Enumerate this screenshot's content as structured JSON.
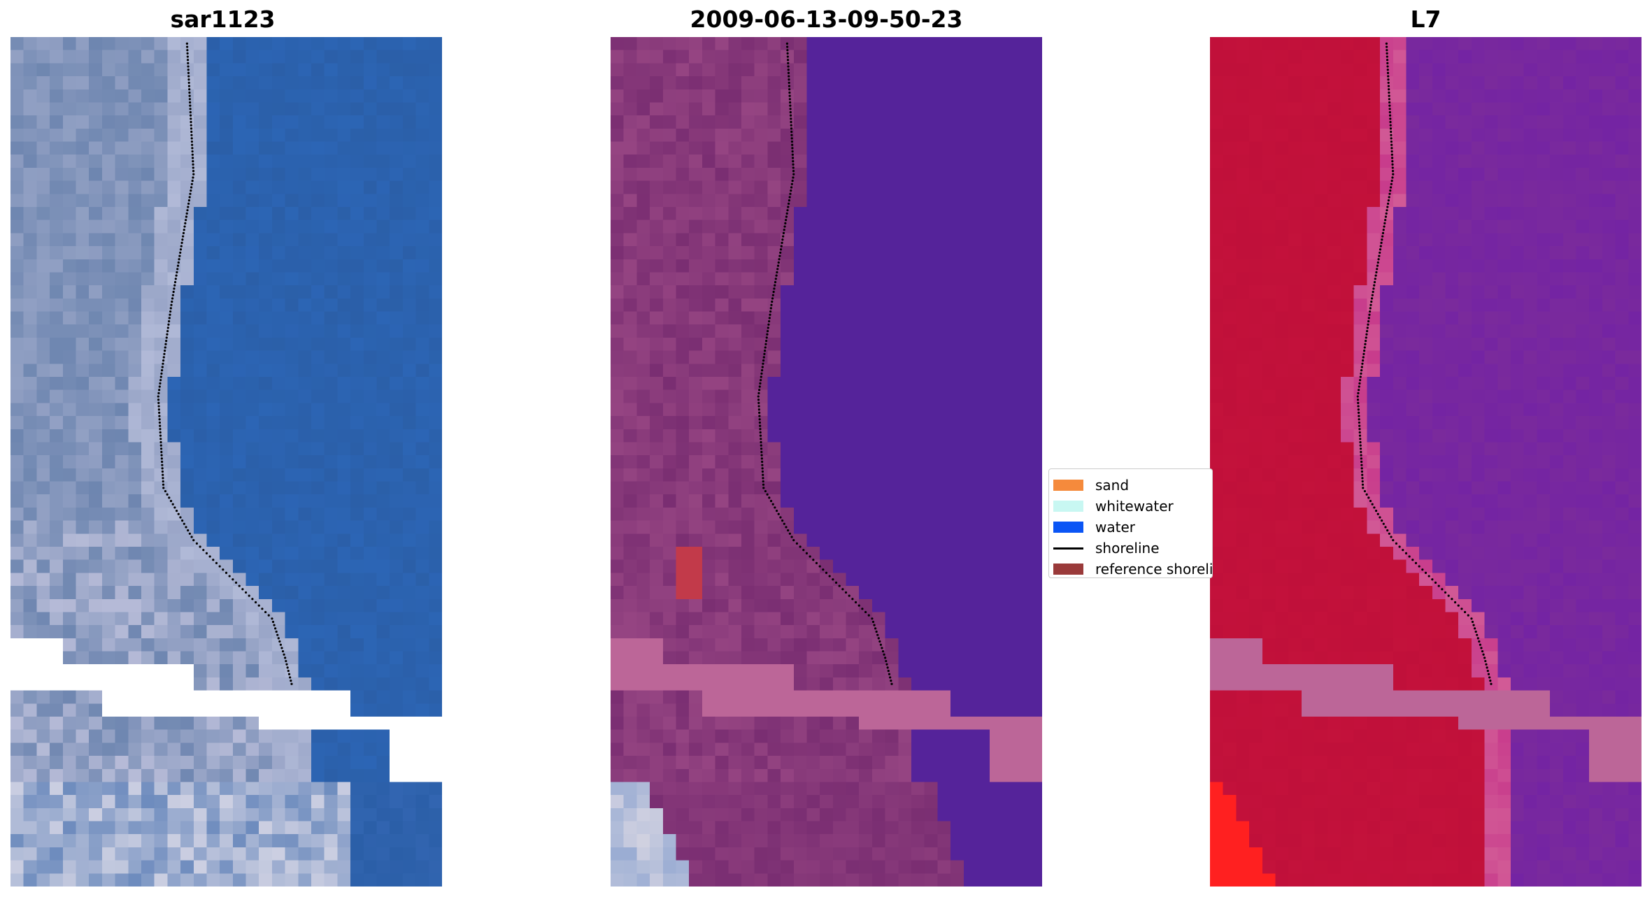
{
  "panels": [
    {
      "title": "sar1123"
    },
    {
      "title": "2009-06-13-09-50-23"
    },
    {
      "title": "L7"
    }
  ],
  "legend": {
    "items": [
      {
        "label": "sand",
        "color": "#f58a3c",
        "kind": "patch"
      },
      {
        "label": "whitewater",
        "color": "#c8f7f2",
        "kind": "patch"
      },
      {
        "label": "water",
        "color": "#0a55f5",
        "kind": "patch"
      },
      {
        "label": "shoreline",
        "color": "#000000",
        "kind": "line"
      },
      {
        "label": "reference shoreline",
        "color": "#9a3a3a",
        "kind": "patch"
      }
    ]
  },
  "colors": {
    "water_rgb": "#2b5fa8",
    "beach_rgb": "#9aa6c8",
    "land_rgb": "#6e86b0",
    "class_water": "#55239a",
    "class_land": "#9c4a86",
    "class_nodata_band": "#bc6698",
    "class_dark": "#7a2e72",
    "class_marker": "#c23a4a",
    "ndwi_land": "#c0103a",
    "ndwi_water": "#7a2a9c",
    "ndwi_band": "#bc6698",
    "ndwi_bright": "#ff2020",
    "shoreline_dots": "#000000"
  }
}
